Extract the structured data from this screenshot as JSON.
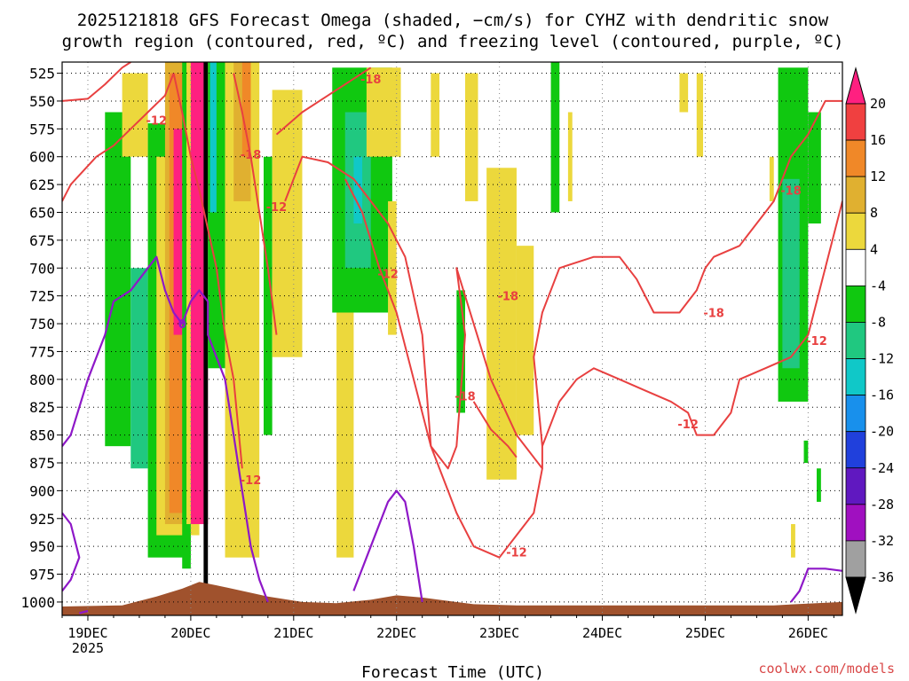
{
  "chart_data": {
    "type": "heatmap",
    "title_line1": "2025121818 GFS Forecast Omega (shaded, −cm/s) for CYHZ with dendritic snow",
    "title_line2": "growth region (contoured, red, ºC) and freezing level (contoured, purple, ºC)",
    "xlabel": "Forecast Time (UTC)",
    "credit": "coolwx.com/models",
    "x_ticks": [
      {
        "label": "19DEC",
        "hour": 0,
        "sub": "2025"
      },
      {
        "label": "20DEC",
        "hour": 24,
        "sub": ""
      },
      {
        "label": "21DEC",
        "hour": 48,
        "sub": ""
      },
      {
        "label": "22DEC",
        "hour": 72,
        "sub": ""
      },
      {
        "label": "23DEC",
        "hour": 96,
        "sub": ""
      },
      {
        "label": "24DEC",
        "hour": 120,
        "sub": ""
      },
      {
        "label": "25DEC",
        "hour": 144,
        "sub": ""
      },
      {
        "label": "26DEC",
        "hour": 168,
        "sub": ""
      }
    ],
    "x_range_hours": [
      -6,
      176
    ],
    "y_ticks": [
      525,
      550,
      575,
      600,
      625,
      650,
      675,
      700,
      725,
      750,
      775,
      800,
      825,
      850,
      875,
      900,
      925,
      950,
      975,
      1000
    ],
    "y_range_hPa": [
      515,
      1012
    ],
    "colorbar": {
      "labels": [
        "20",
        "16",
        "12",
        "8",
        "4",
        "-4",
        "-8",
        "-12",
        "-16",
        "-20",
        "-24",
        "-28",
        "-32",
        "-36"
      ],
      "colors": [
        "#ff2080",
        "#f04040",
        "#f08828",
        "#e0b030",
        "#ecd83c",
        "#ffffff",
        "#10c810",
        "#20c880",
        "#10c8c8",
        "#1890ec",
        "#2040dc",
        "#6018c0",
        "#a010c0",
        "#a0a0a0",
        "#000000"
      ]
    },
    "shading": [
      {
        "x0": -6,
        "x1": -5,
        "p0": 515,
        "p1": 880,
        "color": "#ffffff"
      },
      {
        "x0": 4,
        "x1": 10,
        "p0": 560,
        "p1": 860,
        "color": "#10c810"
      },
      {
        "x0": 8,
        "x1": 14,
        "p0": 525,
        "p1": 600,
        "color": "#ecd83c"
      },
      {
        "x0": 10,
        "x1": 14,
        "p0": 700,
        "p1": 880,
        "color": "#20c880"
      },
      {
        "x0": 14,
        "x1": 24,
        "p0": 570,
        "p1": 960,
        "color": "#10c810"
      },
      {
        "x0": 16,
        "x1": 26,
        "p0": 600,
        "p1": 940,
        "color": "#ecd83c"
      },
      {
        "x0": 18,
        "x1": 24,
        "p0": 515,
        "p1": 930,
        "color": "#e0b030"
      },
      {
        "x0": 19,
        "x1": 23,
        "p0": 525,
        "p1": 920,
        "color": "#f08828"
      },
      {
        "x0": 20,
        "x1": 22,
        "p0": 575,
        "p1": 760,
        "color": "#ff2080"
      },
      {
        "x0": 22,
        "x1": 24,
        "p0": 515,
        "p1": 970,
        "color": "#10c810"
      },
      {
        "x0": 23,
        "x1": 27,
        "p0": 515,
        "p1": 930,
        "color": "#ecd83c"
      },
      {
        "x0": 24,
        "x1": 28,
        "p0": 515,
        "p1": 930,
        "color": "#ff2080"
      },
      {
        "x0": 27,
        "x1": 28,
        "p0": 515,
        "p1": 1000,
        "color": "#000000"
      },
      {
        "x0": 28,
        "x1": 32,
        "p0": 515,
        "p1": 790,
        "color": "#10c810"
      },
      {
        "x0": 28.5,
        "x1": 30,
        "p0": 515,
        "p1": 650,
        "color": "#10c8c8"
      },
      {
        "x0": 32,
        "x1": 40,
        "p0": 515,
        "p1": 960,
        "color": "#ecd83c"
      },
      {
        "x0": 34,
        "x1": 38,
        "p0": 515,
        "p1": 640,
        "color": "#e0b030"
      },
      {
        "x0": 36,
        "x1": 38,
        "p0": 515,
        "p1": 600,
        "color": "#f08828"
      },
      {
        "x0": 41,
        "x1": 43,
        "p0": 600,
        "p1": 850,
        "color": "#10c810"
      },
      {
        "x0": 43,
        "x1": 50,
        "p0": 540,
        "p1": 780,
        "color": "#ecd83c"
      },
      {
        "x0": 57,
        "x1": 71,
        "p0": 520,
        "p1": 740,
        "color": "#10c810"
      },
      {
        "x0": 60,
        "x1": 66,
        "p0": 560,
        "p1": 700,
        "color": "#20c880"
      },
      {
        "x0": 62,
        "x1": 64,
        "p0": 600,
        "p1": 660,
        "color": "#10c8c8"
      },
      {
        "x0": 58,
        "x1": 62,
        "p0": 740,
        "p1": 960,
        "color": "#ecd83c"
      },
      {
        "x0": 65,
        "x1": 73,
        "p0": 520,
        "p1": 600,
        "color": "#ecd83c"
      },
      {
        "x0": 70,
        "x1": 72,
        "p0": 640,
        "p1": 760,
        "color": "#ecd83c"
      },
      {
        "x0": 80,
        "x1": 82,
        "p0": 525,
        "p1": 600,
        "color": "#ecd83c"
      },
      {
        "x0": 86,
        "x1": 88,
        "p0": 720,
        "p1": 830,
        "color": "#10c810"
      },
      {
        "x0": 88,
        "x1": 91,
        "p0": 525,
        "p1": 640,
        "color": "#ecd83c"
      },
      {
        "x0": 93,
        "x1": 100,
        "p0": 610,
        "p1": 890,
        "color": "#ecd83c"
      },
      {
        "x0": 100,
        "x1": 104,
        "p0": 680,
        "p1": 850,
        "color": "#ecd83c"
      },
      {
        "x0": 108,
        "x1": 110,
        "p0": 515,
        "p1": 650,
        "color": "#10c810"
      },
      {
        "x0": 112,
        "x1": 113,
        "p0": 560,
        "p1": 640,
        "color": "#ecd83c"
      },
      {
        "x0": 138,
        "x1": 140,
        "p0": 525,
        "p1": 560,
        "color": "#ecd83c"
      },
      {
        "x0": 142,
        "x1": 143.5,
        "p0": 525,
        "p1": 600,
        "color": "#ecd83c"
      },
      {
        "x0": 159,
        "x1": 160,
        "p0": 600,
        "p1": 640,
        "color": "#ecd83c"
      },
      {
        "x0": 161,
        "x1": 168,
        "p0": 520,
        "p1": 820,
        "color": "#10c810"
      },
      {
        "x0": 162,
        "x1": 166,
        "p0": 620,
        "p1": 790,
        "color": "#20c880"
      },
      {
        "x0": 168,
        "x1": 171,
        "p0": 560,
        "p1": 660,
        "color": "#10c810"
      },
      {
        "x0": 167,
        "x1": 168,
        "p0": 855,
        "p1": 875,
        "color": "#10c810"
      },
      {
        "x0": 170,
        "x1": 171,
        "p0": 880,
        "p1": 910,
        "color": "#10c810"
      },
      {
        "x0": 164,
        "x1": 165,
        "p0": 930,
        "p1": 960,
        "color": "#ecd83c"
      }
    ],
    "snow_isotherms": [
      {
        "points": [
          [
            -6,
            640
          ],
          [
            -4,
            625
          ],
          [
            2,
            600
          ],
          [
            6,
            590
          ],
          [
            10,
            575
          ],
          [
            14,
            560
          ],
          [
            18,
            545
          ],
          [
            20,
            525
          ]
        ]
      },
      {
        "points": [
          [
            -6,
            550
          ],
          [
            0,
            548
          ],
          [
            4,
            535
          ],
          [
            8,
            520
          ],
          [
            10,
            515
          ]
        ]
      },
      {
        "points": [
          [
            20,
            525
          ],
          [
            22,
            560
          ],
          [
            24,
            600
          ],
          [
            26,
            630
          ],
          [
            30,
            700
          ],
          [
            32,
            760
          ],
          [
            34,
            800
          ],
          [
            36,
            880
          ]
        ]
      },
      {
        "points": [
          [
            34,
            525
          ],
          [
            36,
            560
          ],
          [
            38,
            600
          ],
          [
            40,
            650
          ],
          [
            42,
            700
          ],
          [
            44,
            760
          ]
        ]
      },
      {
        "points": [
          [
            44,
            580
          ],
          [
            50,
            560
          ],
          [
            56,
            545
          ],
          [
            62,
            530
          ],
          [
            66,
            520
          ]
        ]
      },
      {
        "points": [
          [
            46,
            640
          ],
          [
            50,
            600
          ],
          [
            56,
            605
          ],
          [
            62,
            620
          ],
          [
            66,
            640
          ],
          [
            70,
            660
          ],
          [
            74,
            690
          ],
          [
            78,
            760
          ],
          [
            80,
            860
          ],
          [
            84,
            880
          ],
          [
            86,
            860
          ],
          [
            88,
            760
          ],
          [
            86,
            700
          ],
          [
            90,
            750
          ],
          [
            94,
            800
          ],
          [
            100,
            850
          ],
          [
            106,
            880
          ],
          [
            106,
            860
          ],
          [
            104,
            780
          ],
          [
            106,
            740
          ],
          [
            110,
            700
          ],
          [
            118,
            690
          ],
          [
            124,
            690
          ],
          [
            128,
            710
          ],
          [
            132,
            740
          ],
          [
            138,
            740
          ],
          [
            142,
            720
          ],
          [
            144,
            700
          ],
          [
            146,
            690
          ],
          [
            152,
            680
          ],
          [
            154,
            670
          ],
          [
            158,
            650
          ],
          [
            160,
            640
          ],
          [
            164,
            600
          ],
          [
            168,
            580
          ],
          [
            172,
            550
          ],
          [
            176,
            550
          ]
        ]
      },
      {
        "points": [
          [
            90,
            820
          ],
          [
            94,
            845
          ],
          [
            98,
            860
          ],
          [
            100,
            870
          ]
        ]
      },
      {
        "points": [
          [
            60,
            620
          ],
          [
            64,
            650
          ],
          [
            68,
            700
          ],
          [
            72,
            740
          ],
          [
            76,
            800
          ],
          [
            80,
            860
          ],
          [
            84,
            900
          ],
          [
            86,
            920
          ],
          [
            90,
            950
          ],
          [
            96,
            960
          ],
          [
            100,
            940
          ],
          [
            104,
            920
          ],
          [
            106,
            880
          ]
        ]
      },
      {
        "points": [
          [
            106,
            860
          ],
          [
            110,
            820
          ],
          [
            114,
            800
          ],
          [
            118,
            790
          ],
          [
            124,
            800
          ],
          [
            130,
            810
          ],
          [
            136,
            820
          ],
          [
            140,
            830
          ],
          [
            142,
            850
          ],
          [
            146,
            850
          ],
          [
            150,
            830
          ],
          [
            152,
            800
          ],
          [
            158,
            790
          ],
          [
            164,
            780
          ],
          [
            168,
            760
          ],
          [
            172,
            700
          ],
          [
            176,
            640
          ]
        ]
      }
    ],
    "freezing_level": [
      {
        "points": [
          [
            -6,
            860
          ],
          [
            -4,
            850
          ],
          [
            0,
            800
          ],
          [
            4,
            760
          ],
          [
            6,
            730
          ],
          [
            10,
            720
          ],
          [
            14,
            700
          ],
          [
            16,
            690
          ],
          [
            18,
            720
          ],
          [
            20,
            740
          ],
          [
            22,
            750
          ],
          [
            24,
            730
          ],
          [
            26,
            720
          ],
          [
            28,
            730
          ],
          [
            28,
            760
          ],
          [
            32,
            800
          ],
          [
            34,
            850
          ],
          [
            36,
            900
          ],
          [
            38,
            950
          ],
          [
            40,
            980
          ],
          [
            42,
            1000
          ]
        ]
      },
      {
        "points": [
          [
            -6,
            920
          ],
          [
            -4,
            930
          ],
          [
            -2,
            960
          ],
          [
            -4,
            980
          ],
          [
            -6,
            990
          ]
        ]
      },
      {
        "points": [
          [
            -2,
            1010
          ],
          [
            0,
            1008
          ]
        ]
      },
      {
        "points": [
          [
            62,
            990
          ],
          [
            66,
            950
          ],
          [
            70,
            910
          ],
          [
            72,
            900
          ],
          [
            74,
            910
          ],
          [
            76,
            950
          ],
          [
            78,
            1000
          ]
        ]
      },
      {
        "points": [
          [
            164,
            1000
          ],
          [
            166,
            990
          ],
          [
            168,
            970
          ],
          [
            172,
            970
          ],
          [
            176,
            972
          ]
        ]
      }
    ],
    "terrain": [
      [
        -6,
        1004
      ],
      [
        8,
        1003
      ],
      [
        16,
        995
      ],
      [
        22,
        988
      ],
      [
        26,
        982
      ],
      [
        30,
        985
      ],
      [
        36,
        990
      ],
      [
        42,
        995
      ],
      [
        50,
        1000
      ],
      [
        58,
        1001
      ],
      [
        66,
        998
      ],
      [
        72,
        994
      ],
      [
        78,
        996
      ],
      [
        90,
        1002
      ],
      [
        100,
        1003
      ],
      [
        130,
        1003
      ],
      [
        160,
        1003
      ],
      [
        170,
        1001
      ],
      [
        176,
        1000
      ]
    ],
    "contour_labels": [
      {
        "text": "-12",
        "x": 16,
        "p": 567
      },
      {
        "text": "-18",
        "x": 38,
        "p": 598
      },
      {
        "text": "-12",
        "x": 44,
        "p": 645
      },
      {
        "text": "-18",
        "x": 66,
        "p": 530
      },
      {
        "text": "-12",
        "x": 70,
        "p": 705
      },
      {
        "text": "-18",
        "x": 98,
        "p": 725
      },
      {
        "text": "-18",
        "x": 88,
        "p": 815
      },
      {
        "text": "-12",
        "x": 38,
        "p": 890
      },
      {
        "text": "-12",
        "x": 100,
        "p": 955
      },
      {
        "text": "-18",
        "x": 146,
        "p": 740
      },
      {
        "text": "-12",
        "x": 140,
        "p": 840
      },
      {
        "text": "-18",
        "x": 164,
        "p": 630
      },
      {
        "text": "-12",
        "x": 170,
        "p": 765
      }
    ],
    "freezing_labels": [
      {
        "text": "0",
        "x": 22,
        "p": 750
      }
    ]
  }
}
